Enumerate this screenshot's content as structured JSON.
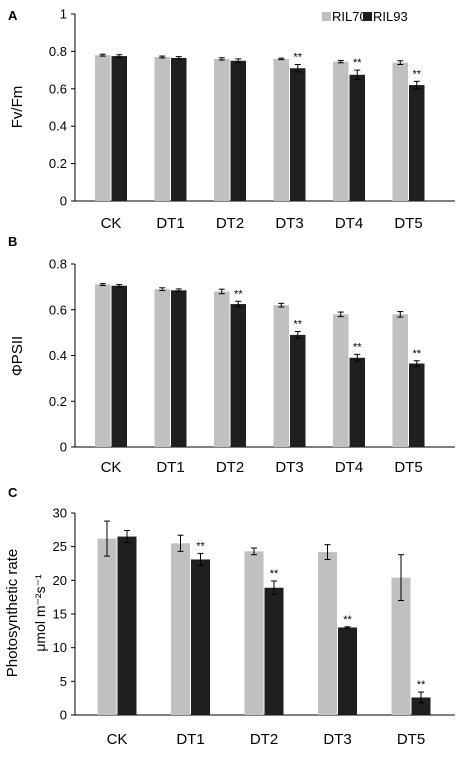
{
  "legend": {
    "items": [
      "RIL70",
      "RIL93"
    ]
  },
  "chart_data": [
    {
      "type": "bar",
      "panel": "A",
      "ylabel": "Fv/Fm",
      "ylim": [
        0,
        1
      ],
      "yticks": [
        "0",
        "0.2",
        "0.4",
        "0.6",
        "0.8",
        "1"
      ],
      "categories": [
        "CK",
        "DT1",
        "DT2",
        "DT3",
        "DT4",
        "DT5"
      ],
      "series": [
        {
          "name": "RIL70",
          "color": "#c0c0c0",
          "values": [
            0.78,
            0.77,
            0.76,
            0.76,
            0.745,
            0.74
          ],
          "errors": [
            0.005,
            0.005,
            0.006,
            0.004,
            0.006,
            0.01
          ]
        },
        {
          "name": "RIL93",
          "color": "#1f1f1f",
          "values": [
            0.775,
            0.765,
            0.75,
            0.71,
            0.675,
            0.62
          ],
          "errors": [
            0.007,
            0.007,
            0.01,
            0.02,
            0.025,
            0.02
          ]
        }
      ],
      "significance": [
        "",
        "",
        "",
        "**",
        "**",
        "**"
      ],
      "grid": false
    },
    {
      "type": "bar",
      "panel": "B",
      "ylabel": "ΦPSII",
      "ylim": [
        0,
        0.8
      ],
      "yticks": [
        "0",
        "0.2",
        "0.4",
        "0.6",
        "0.8"
      ],
      "categories": [
        "CK",
        "DT1",
        "DT2",
        "DT3",
        "DT4",
        "DT5"
      ],
      "series": [
        {
          "name": "RIL70",
          "color": "#c0c0c0",
          "values": [
            0.71,
            0.69,
            0.68,
            0.62,
            0.58,
            0.58
          ],
          "errors": [
            0.004,
            0.006,
            0.01,
            0.008,
            0.01,
            0.012
          ]
        },
        {
          "name": "RIL93",
          "color": "#1f1f1f",
          "values": [
            0.705,
            0.685,
            0.625,
            0.49,
            0.39,
            0.365
          ],
          "errors": [
            0.005,
            0.006,
            0.012,
            0.015,
            0.015,
            0.012
          ]
        }
      ],
      "significance": [
        "",
        "",
        "**",
        "**",
        "**",
        "**"
      ],
      "grid": false
    },
    {
      "type": "bar",
      "panel": "C",
      "ylabel": "Photosynthetic rate",
      "ylabel2": "μmol m⁻²s⁻¹",
      "ylim": [
        0,
        30
      ],
      "yticks": [
        "0",
        "5",
        "10",
        "15",
        "20",
        "25",
        "30"
      ],
      "categories": [
        "CK",
        "DT1",
        "DT2",
        "DT3",
        "DT5"
      ],
      "series": [
        {
          "name": "RIL70",
          "color": "#c0c0c0",
          "values": [
            26.2,
            25.5,
            24.3,
            24.2,
            20.4
          ],
          "errors": [
            2.6,
            1.2,
            0.5,
            1.1,
            3.4
          ]
        },
        {
          "name": "RIL93",
          "color": "#1f1f1f",
          "values": [
            26.5,
            23.1,
            18.9,
            13.0,
            2.6
          ],
          "errors": [
            0.9,
            0.9,
            1.0,
            0.1,
            0.8
          ]
        }
      ],
      "significance": [
        "",
        "**",
        "**",
        "**",
        "**"
      ],
      "grid": false
    }
  ]
}
